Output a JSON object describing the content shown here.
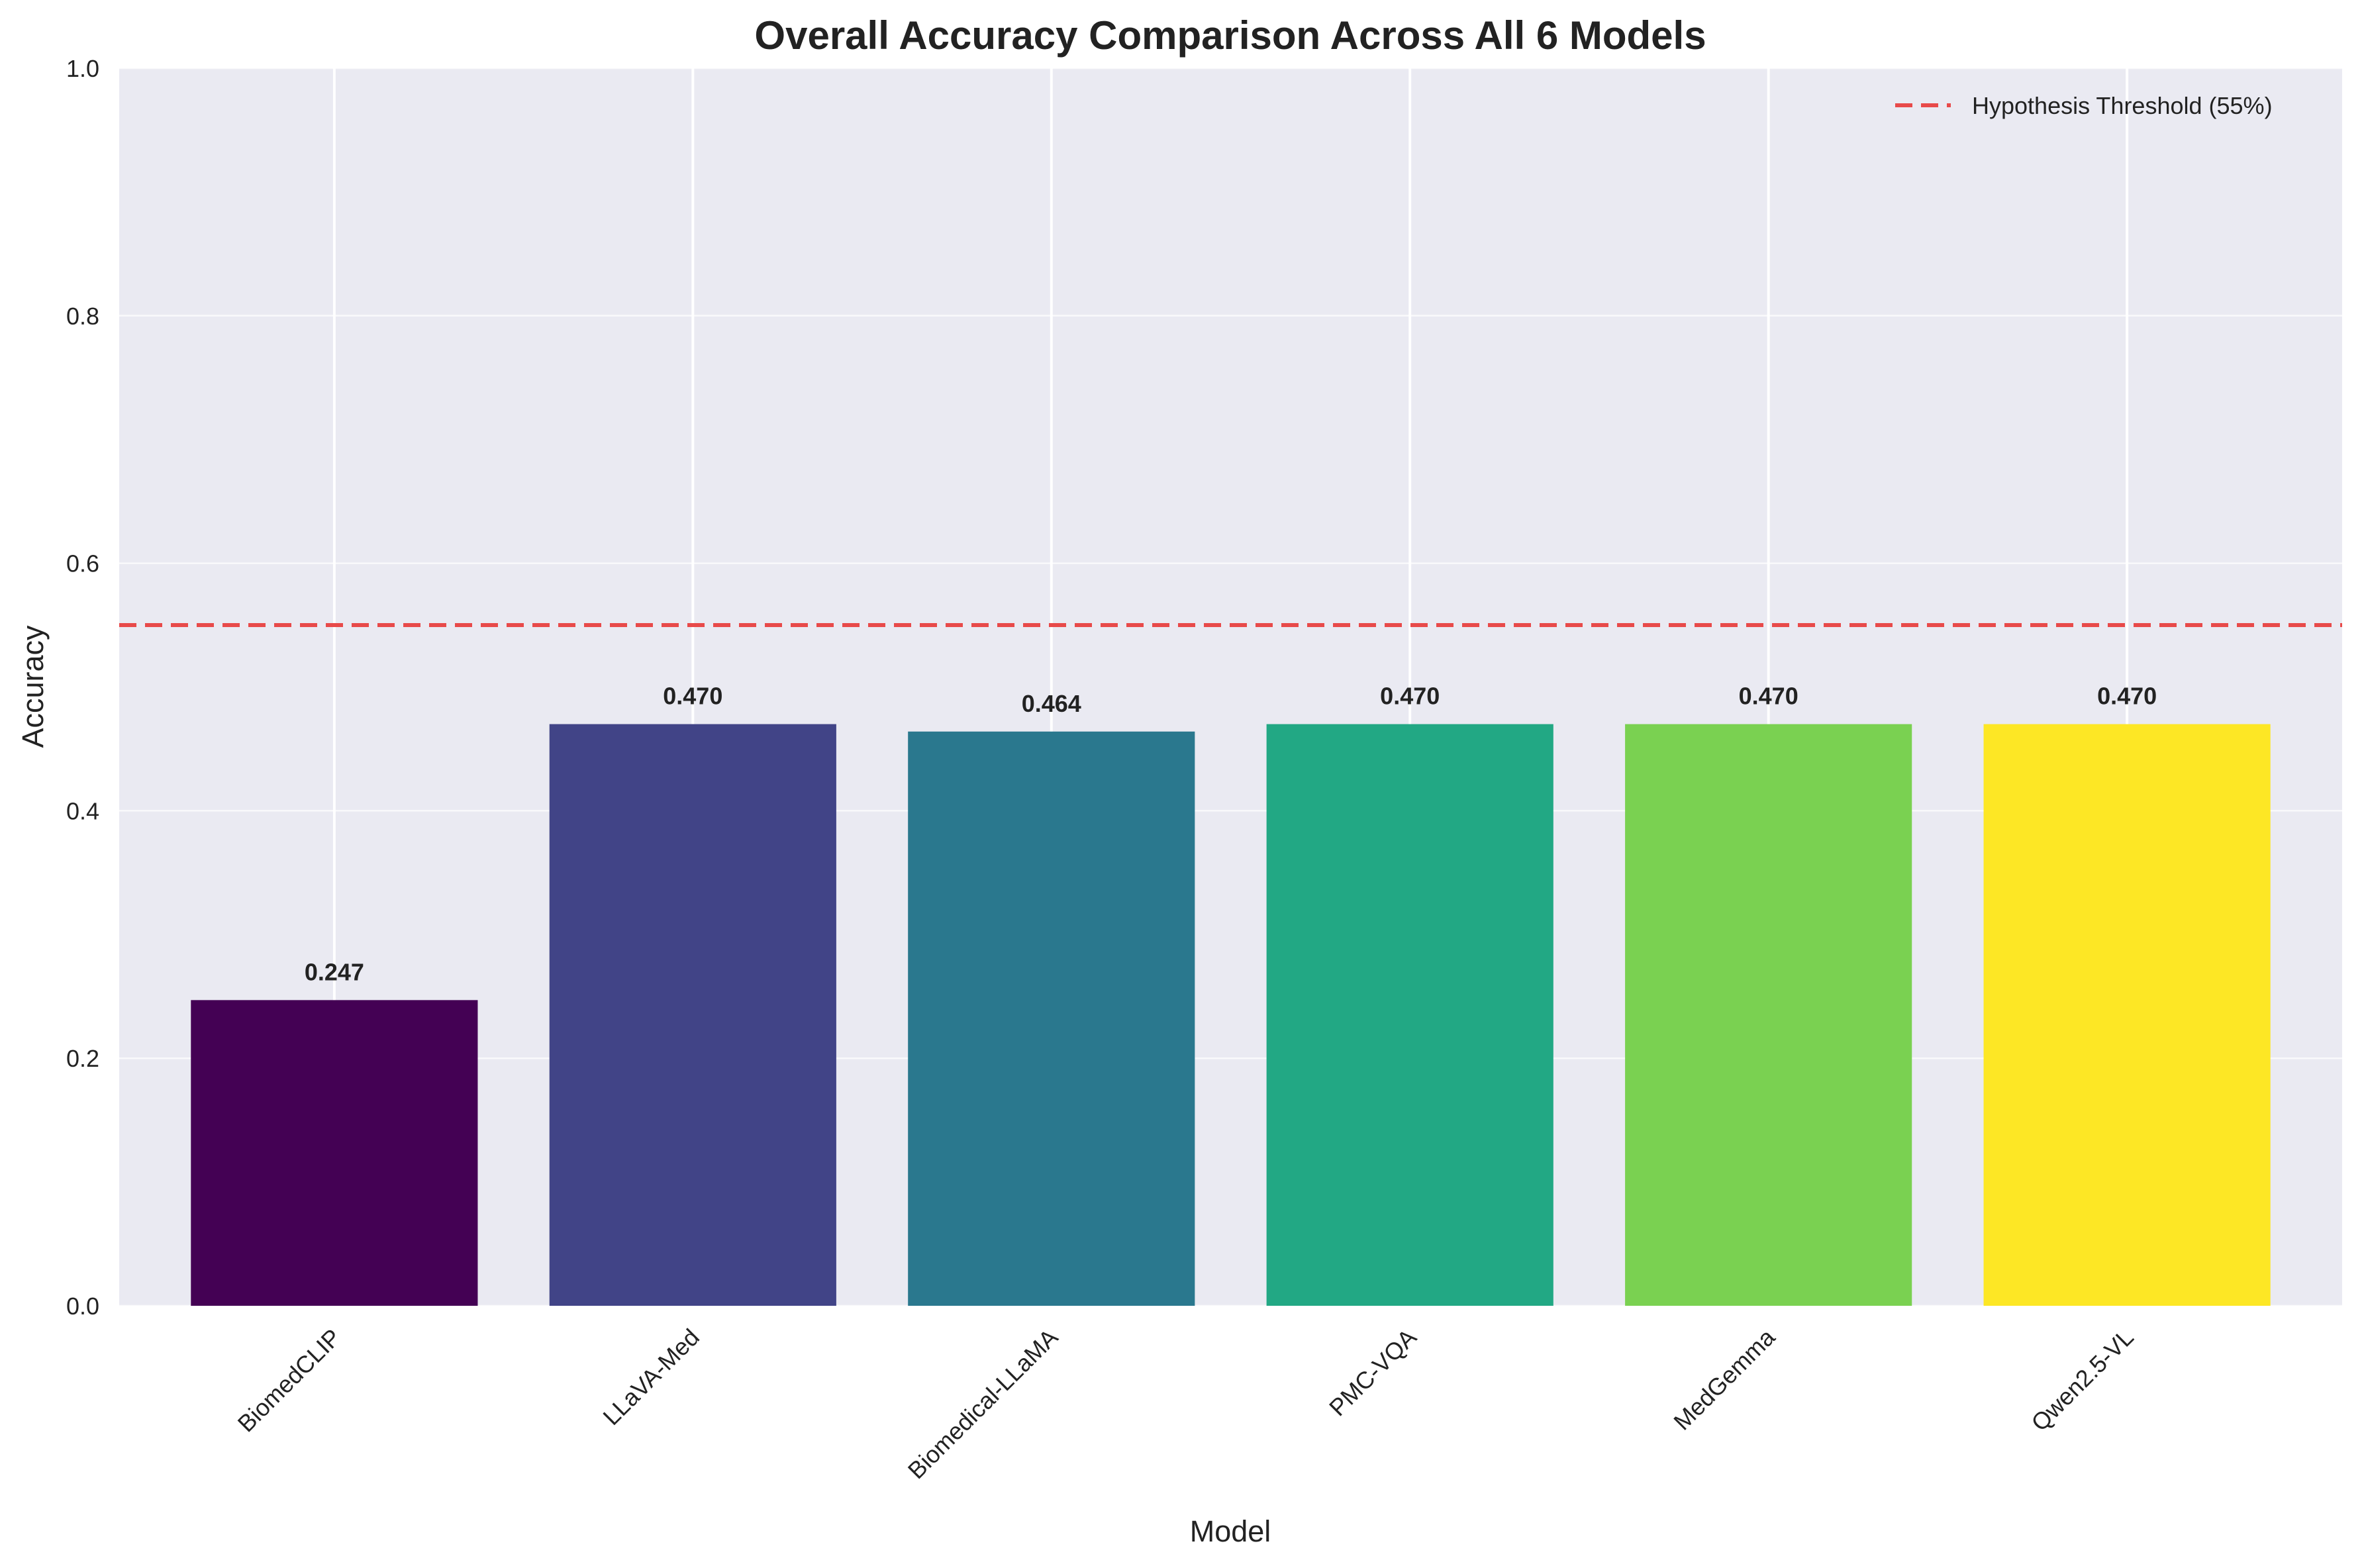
{
  "chart_data": {
    "type": "bar",
    "title": "Overall Accuracy Comparison Across All 6 Models",
    "xlabel": "Model",
    "ylabel": "Accuracy",
    "ylim": [
      0,
      1.0
    ],
    "yticks": [
      "0.0",
      "0.2",
      "0.4",
      "0.6",
      "0.8",
      "1.0"
    ],
    "categories": [
      "BiomedCLIP",
      "LLaVA-Med",
      "Biomedical-LLaMA",
      "PMC-VQA",
      "MedGemma",
      "Qwen2.5-VL"
    ],
    "values": [
      0.247,
      0.47,
      0.464,
      0.47,
      0.47,
      0.47
    ],
    "value_labels": [
      "0.247",
      "0.470",
      "0.464",
      "0.470",
      "0.470",
      "0.470"
    ],
    "bar_colors": [
      "#440154",
      "#414487",
      "#2a788e",
      "#22a884",
      "#7ad151",
      "#fde725"
    ],
    "threshold": {
      "value": 0.55,
      "label": "Hypothesis Threshold (55%)",
      "color": "#e84a4a"
    },
    "grid": true,
    "legend_position": "top-right"
  }
}
